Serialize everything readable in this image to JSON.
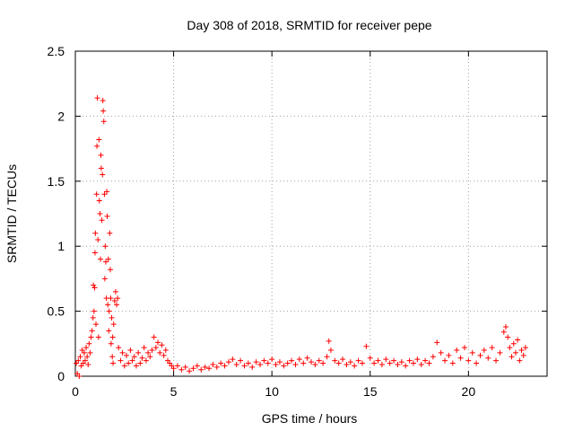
{
  "chart_data": {
    "type": "scatter",
    "title": "Day 308 of 2018, SRMTID for receiver pepe",
    "xlabel": "GPS time / hours",
    "ylabel": "SRMTID / TECUs",
    "xlim": [
      0,
      24
    ],
    "ylim": [
      0,
      2.5
    ],
    "xticks": [
      0,
      5,
      10,
      15,
      20
    ],
    "xtick_labels": [
      "0",
      "5",
      "10",
      "15",
      "20"
    ],
    "yticks": [
      0,
      0.5,
      1,
      1.5,
      2,
      2.5
    ],
    "ytick_labels": [
      "0",
      "0.5",
      "1",
      "1.5",
      "2",
      "2.5"
    ],
    "grid": true,
    "marker": "+",
    "color": "#ff0000",
    "series": [
      {
        "name": "SRMTID",
        "points": [
          [
            0.05,
            0.1
          ],
          [
            0.1,
            0.02
          ],
          [
            0.15,
            0.12
          ],
          [
            0.2,
            0.0
          ],
          [
            0.25,
            0.15
          ],
          [
            0.3,
            0.08
          ],
          [
            0.35,
            0.2
          ],
          [
            0.4,
            0.1
          ],
          [
            0.45,
            0.18
          ],
          [
            0.5,
            0.12
          ],
          [
            0.55,
            0.22
          ],
          [
            0.6,
            0.15
          ],
          [
            0.65,
            0.09
          ],
          [
            0.7,
            0.25
          ],
          [
            0.75,
            0.18
          ],
          [
            0.8,
            0.3
          ],
          [
            0.85,
            0.35
          ],
          [
            0.9,
            0.45
          ],
          [
            0.92,
            0.7
          ],
          [
            0.95,
            0.5
          ],
          [
            0.98,
            0.68
          ],
          [
            1.0,
            0.95
          ],
          [
            1.02,
            1.1
          ],
          [
            1.05,
            0.4
          ],
          [
            1.08,
            1.4
          ],
          [
            1.1,
            1.77
          ],
          [
            1.12,
            2.14
          ],
          [
            1.15,
            1.05
          ],
          [
            1.18,
            0.3
          ],
          [
            1.2,
            1.82
          ],
          [
            1.22,
            1.35
          ],
          [
            1.25,
            1.25
          ],
          [
            1.28,
            0.9
          ],
          [
            1.3,
            1.7
          ],
          [
            1.32,
            1.6
          ],
          [
            1.35,
            1.2
          ],
          [
            1.38,
            1.55
          ],
          [
            1.4,
            2.12
          ],
          [
            1.42,
            2.04
          ],
          [
            1.45,
            1.96
          ],
          [
            1.48,
            1.4
          ],
          [
            1.5,
            0.75
          ],
          [
            1.52,
            1.0
          ],
          [
            1.55,
            0.88
          ],
          [
            1.58,
            0.6
          ],
          [
            1.6,
            1.42
          ],
          [
            1.62,
            1.23
          ],
          [
            1.65,
            0.55
          ],
          [
            1.68,
            0.9
          ],
          [
            1.7,
            0.35
          ],
          [
            1.72,
            0.5
          ],
          [
            1.75,
            1.1
          ],
          [
            1.78,
            0.82
          ],
          [
            1.8,
            0.6
          ],
          [
            1.82,
            0.25
          ],
          [
            1.85,
            0.45
          ],
          [
            1.88,
            0.15
          ],
          [
            1.9,
            0.3
          ],
          [
            1.92,
            0.1
          ],
          [
            1.95,
            0.4
          ],
          [
            2.0,
            0.58
          ],
          [
            2.05,
            0.65
          ],
          [
            2.1,
            0.55
          ],
          [
            2.15,
            0.6
          ],
          [
            2.2,
            0.22
          ],
          [
            2.3,
            0.12
          ],
          [
            2.4,
            0.18
          ],
          [
            2.5,
            0.08
          ],
          [
            2.6,
            0.16
          ],
          [
            2.7,
            0.1
          ],
          [
            2.8,
            0.2
          ],
          [
            2.9,
            0.12
          ],
          [
            3.0,
            0.15
          ],
          [
            3.1,
            0.08
          ],
          [
            3.2,
            0.18
          ],
          [
            3.3,
            0.1
          ],
          [
            3.4,
            0.14
          ],
          [
            3.5,
            0.22
          ],
          [
            3.6,
            0.12
          ],
          [
            3.7,
            0.18
          ],
          [
            3.8,
            0.15
          ],
          [
            3.9,
            0.2
          ],
          [
            4.0,
            0.3
          ],
          [
            4.1,
            0.22
          ],
          [
            4.2,
            0.26
          ],
          [
            4.3,
            0.18
          ],
          [
            4.4,
            0.24
          ],
          [
            4.5,
            0.16
          ],
          [
            4.6,
            0.2
          ],
          [
            4.7,
            0.12
          ],
          [
            4.8,
            0.1
          ],
          [
            4.9,
            0.08
          ],
          [
            5.0,
            0.06
          ],
          [
            5.2,
            0.08
          ],
          [
            5.4,
            0.05
          ],
          [
            5.6,
            0.07
          ],
          [
            5.8,
            0.04
          ],
          [
            6.0,
            0.06
          ],
          [
            6.2,
            0.08
          ],
          [
            6.4,
            0.05
          ],
          [
            6.6,
            0.07
          ],
          [
            6.8,
            0.06
          ],
          [
            7.0,
            0.09
          ],
          [
            7.2,
            0.07
          ],
          [
            7.4,
            0.1
          ],
          [
            7.6,
            0.08
          ],
          [
            7.8,
            0.11
          ],
          [
            8.0,
            0.13
          ],
          [
            8.2,
            0.09
          ],
          [
            8.4,
            0.12
          ],
          [
            8.6,
            0.08
          ],
          [
            8.8,
            0.1
          ],
          [
            9.0,
            0.07
          ],
          [
            9.2,
            0.11
          ],
          [
            9.4,
            0.09
          ],
          [
            9.6,
            0.12
          ],
          [
            9.8,
            0.1
          ],
          [
            10.0,
            0.13
          ],
          [
            10.2,
            0.09
          ],
          [
            10.4,
            0.11
          ],
          [
            10.6,
            0.08
          ],
          [
            10.8,
            0.1
          ],
          [
            11.0,
            0.12
          ],
          [
            11.2,
            0.09
          ],
          [
            11.4,
            0.13
          ],
          [
            11.6,
            0.1
          ],
          [
            11.8,
            0.14
          ],
          [
            12.0,
            0.11
          ],
          [
            12.2,
            0.09
          ],
          [
            12.4,
            0.12
          ],
          [
            12.6,
            0.1
          ],
          [
            12.8,
            0.15
          ],
          [
            12.9,
            0.27
          ],
          [
            13.0,
            0.2
          ],
          [
            13.2,
            0.12
          ],
          [
            13.4,
            0.1
          ],
          [
            13.6,
            0.13
          ],
          [
            13.8,
            0.09
          ],
          [
            14.0,
            0.11
          ],
          [
            14.2,
            0.08
          ],
          [
            14.4,
            0.12
          ],
          [
            14.6,
            0.1
          ],
          [
            14.8,
            0.23
          ],
          [
            15.0,
            0.14
          ],
          [
            15.2,
            0.1
          ],
          [
            15.4,
            0.12
          ],
          [
            15.6,
            0.09
          ],
          [
            15.8,
            0.13
          ],
          [
            16.0,
            0.1
          ],
          [
            16.2,
            0.12
          ],
          [
            16.4,
            0.09
          ],
          [
            16.6,
            0.11
          ],
          [
            16.8,
            0.08
          ],
          [
            17.0,
            0.12
          ],
          [
            17.2,
            0.1
          ],
          [
            17.4,
            0.13
          ],
          [
            17.6,
            0.09
          ],
          [
            17.8,
            0.12
          ],
          [
            18.0,
            0.1
          ],
          [
            18.2,
            0.15
          ],
          [
            18.4,
            0.26
          ],
          [
            18.6,
            0.18
          ],
          [
            18.8,
            0.12
          ],
          [
            19.0,
            0.16
          ],
          [
            19.2,
            0.1
          ],
          [
            19.4,
            0.2
          ],
          [
            19.6,
            0.14
          ],
          [
            19.8,
            0.22
          ],
          [
            20.0,
            0.12
          ],
          [
            20.2,
            0.18
          ],
          [
            20.4,
            0.1
          ],
          [
            20.6,
            0.16
          ],
          [
            20.8,
            0.2
          ],
          [
            21.0,
            0.14
          ],
          [
            21.2,
            0.22
          ],
          [
            21.4,
            0.12
          ],
          [
            21.6,
            0.18
          ],
          [
            21.8,
            0.34
          ],
          [
            21.9,
            0.38
          ],
          [
            22.0,
            0.3
          ],
          [
            22.1,
            0.22
          ],
          [
            22.2,
            0.15
          ],
          [
            22.3,
            0.25
          ],
          [
            22.4,
            0.18
          ],
          [
            22.5,
            0.28
          ],
          [
            22.6,
            0.12
          ],
          [
            22.7,
            0.2
          ],
          [
            22.8,
            0.16
          ],
          [
            22.9,
            0.22
          ]
        ]
      }
    ]
  }
}
